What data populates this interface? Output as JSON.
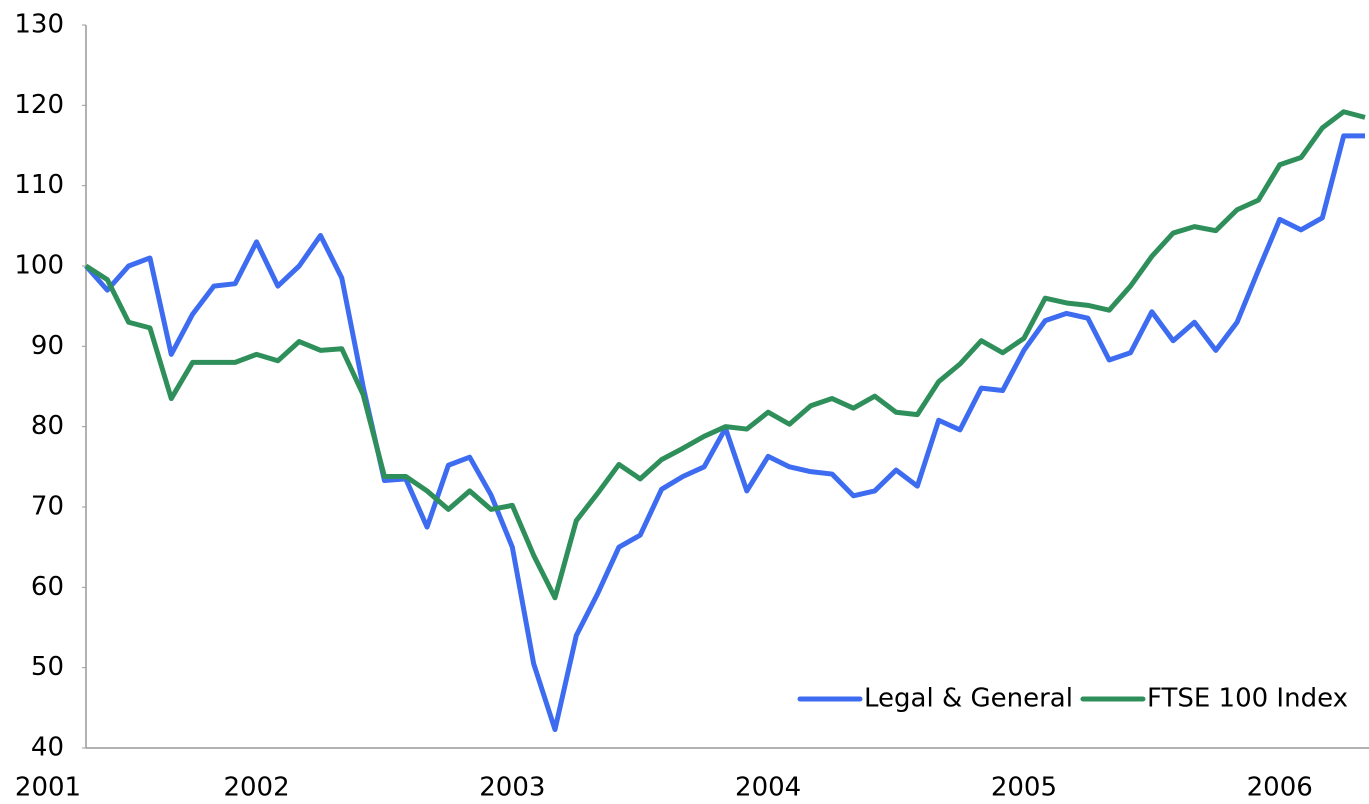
{
  "chart_data": {
    "type": "line",
    "categories": [
      "2001",
      null,
      null,
      null,
      null,
      null,
      null,
      null,
      "2002",
      null,
      null,
      null,
      null,
      null,
      null,
      null,
      null,
      null,
      null,
      null,
      "2003",
      null,
      null,
      null,
      null,
      null,
      null,
      null,
      null,
      null,
      null,
      null,
      "2004",
      null,
      null,
      null,
      null,
      null,
      null,
      null,
      null,
      null,
      null,
      null,
      "2005",
      null,
      null,
      null,
      null,
      null,
      null,
      null,
      null,
      null,
      null,
      null,
      "2006",
      null,
      null,
      null,
      null
    ],
    "series": [
      {
        "name": "Legal & General",
        "color": "#3d6cf0",
        "values": [
          100,
          97,
          100,
          101,
          89,
          94,
          97.5,
          97.8,
          103,
          97.5,
          100,
          103.8,
          98.5,
          85,
          73.3,
          73.5,
          67.5,
          75.2,
          76.2,
          71.5,
          65,
          50.5,
          42.3,
          54,
          59.2,
          65,
          66.5,
          72.2,
          73.8,
          75,
          79.8,
          72,
          76.3,
          75,
          74.4,
          74.1,
          71.4,
          72,
          74.6,
          72.6,
          80.8,
          79.6,
          84.8,
          84.5,
          89.5,
          93.2,
          94.1,
          93.5,
          88.3,
          89.2,
          94.3,
          90.7,
          93,
          89.5,
          93,
          99.5,
          105.8,
          104.5,
          106,
          116.2,
          116.2
        ]
      },
      {
        "name": "FTSE 100 Index",
        "color": "#2f8f5b",
        "values": [
          100,
          98.3,
          93,
          92.3,
          83.5,
          88,
          88,
          88,
          89,
          88.2,
          90.6,
          89.5,
          89.7,
          84,
          73.8,
          73.8,
          72,
          69.7,
          72,
          69.7,
          70.2,
          64,
          58.7,
          68.3,
          71.7,
          75.3,
          73.5,
          75.9,
          77.3,
          78.8,
          80,
          79.7,
          81.8,
          80.3,
          82.6,
          83.5,
          82.3,
          83.8,
          81.8,
          81.5,
          85.6,
          87.8,
          90.7,
          89.2,
          91,
          96,
          95.4,
          95.1,
          94.5,
          97.5,
          101.2,
          104.1,
          104.9,
          104.4,
          107,
          108.2,
          112.6,
          113.5,
          117.2,
          119.2,
          118.5
        ]
      }
    ],
    "ylim": [
      40,
      130
    ],
    "yticks": [
      40,
      50,
      60,
      70,
      80,
      90,
      100,
      110,
      120,
      130
    ],
    "legend": "lower right"
  }
}
